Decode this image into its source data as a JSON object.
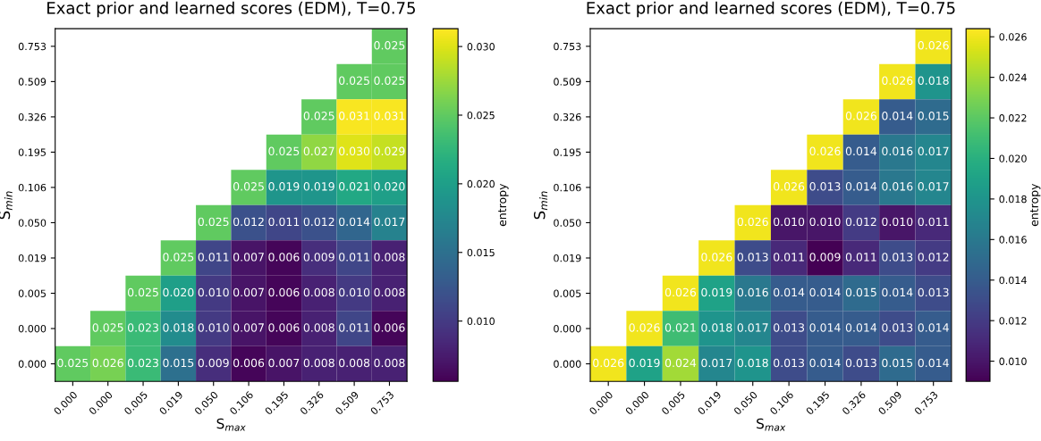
{
  "chart_data": [
    {
      "type": "heatmap",
      "title": "Exact prior and learned scores (EDM), T=0.75",
      "xlabel": "S$_{max}$",
      "ylabel": "S$_{min}$",
      "clabel": "entropy",
      "categories": [
        "0.000",
        "0.000",
        "0.005",
        "0.019",
        "0.050",
        "0.106",
        "0.195",
        "0.326",
        "0.509",
        "0.753"
      ],
      "y_categories": [
        "0.753",
        "0.509",
        "0.326",
        "0.195",
        "0.106",
        "0.050",
        "0.019",
        "0.005",
        "0.000",
        "0.000"
      ],
      "cells": [
        [
          null,
          null,
          null,
          null,
          null,
          null,
          null,
          null,
          null,
          0.025
        ],
        [
          null,
          null,
          null,
          null,
          null,
          null,
          null,
          null,
          0.025,
          0.025
        ],
        [
          null,
          null,
          null,
          null,
          null,
          null,
          null,
          0.025,
          0.031,
          0.031
        ],
        [
          null,
          null,
          null,
          null,
          null,
          null,
          0.025,
          0.027,
          0.03,
          0.029
        ],
        [
          null,
          null,
          null,
          null,
          null,
          0.025,
          0.019,
          0.019,
          0.021,
          0.02
        ],
        [
          null,
          null,
          null,
          null,
          0.025,
          0.012,
          0.011,
          0.012,
          0.014,
          0.017
        ],
        [
          null,
          null,
          null,
          0.025,
          0.011,
          0.007,
          0.006,
          0.009,
          0.011,
          0.008
        ],
        [
          null,
          null,
          0.025,
          0.02,
          0.01,
          0.007,
          0.006,
          0.008,
          0.01,
          0.008
        ],
        [
          null,
          0.025,
          0.023,
          0.018,
          0.01,
          0.007,
          0.006,
          0.008,
          0.011,
          0.006
        ],
        [
          0.025,
          0.026,
          0.023,
          0.015,
          0.009,
          0.006,
          0.007,
          0.008,
          0.008,
          0.008
        ]
      ],
      "cell_labels": [
        [
          null,
          null,
          null,
          null,
          null,
          null,
          null,
          null,
          null,
          "0.025"
        ],
        [
          null,
          null,
          null,
          null,
          null,
          null,
          null,
          null,
          "0.025",
          "0.025"
        ],
        [
          null,
          null,
          null,
          null,
          null,
          null,
          null,
          "0.025",
          "0.031",
          "0.031"
        ],
        [
          null,
          null,
          null,
          null,
          null,
          null,
          "0.025",
          "0.027",
          "0.030",
          "0.029"
        ],
        [
          null,
          null,
          null,
          null,
          null,
          "0.025",
          "0.019",
          "0.019",
          "0.021",
          "0.020"
        ],
        [
          null,
          null,
          null,
          null,
          "0.025",
          "0.012",
          "0.011",
          "0.012",
          "0.014",
          "0.017"
        ],
        [
          null,
          null,
          null,
          "0.025",
          "0.011",
          "0.007",
          "0.006",
          "0.009",
          "0.011",
          "0.008"
        ],
        [
          null,
          null,
          "0.025",
          "0.020",
          "0.010",
          "0.007",
          "0.006",
          "0.008",
          "0.010",
          "0.008"
        ],
        [
          null,
          "0.025",
          "0.023",
          "0.018",
          "0.010",
          "0.007",
          "0.006",
          "0.008",
          "0.011",
          "0.006"
        ],
        [
          "0.025",
          "0.026",
          "0.023",
          "0.015",
          "0.009",
          "0.006",
          "0.007",
          "0.008",
          "0.008",
          "0.008"
        ]
      ],
      "clim": [
        0.0056,
        0.0313
      ],
      "cticks": [
        {
          "value": 0.01,
          "label": "0.010"
        },
        {
          "value": 0.015,
          "label": "0.015"
        },
        {
          "value": 0.02,
          "label": "0.020"
        },
        {
          "value": 0.025,
          "label": "0.025"
        },
        {
          "value": 0.03,
          "label": "0.030"
        }
      ]
    },
    {
      "type": "heatmap",
      "title": "Exact prior and learned scores (EDM), T=0.75",
      "xlabel": "S$_{max}$",
      "ylabel": "S$_{min}$",
      "clabel": "entropy",
      "categories": [
        "0.000",
        "0.000",
        "0.005",
        "0.019",
        "0.050",
        "0.106",
        "0.195",
        "0.326",
        "0.509",
        "0.753"
      ],
      "y_categories": [
        "0.753",
        "0.509",
        "0.326",
        "0.195",
        "0.106",
        "0.050",
        "0.019",
        "0.005",
        "0.000",
        "0.000"
      ],
      "cells": [
        [
          null,
          null,
          null,
          null,
          null,
          null,
          null,
          null,
          null,
          0.026
        ],
        [
          null,
          null,
          null,
          null,
          null,
          null,
          null,
          null,
          0.026,
          0.018
        ],
        [
          null,
          null,
          null,
          null,
          null,
          null,
          null,
          0.026,
          0.014,
          0.015
        ],
        [
          null,
          null,
          null,
          null,
          null,
          null,
          0.026,
          0.014,
          0.016,
          0.017
        ],
        [
          null,
          null,
          null,
          null,
          null,
          0.026,
          0.013,
          0.014,
          0.016,
          0.017
        ],
        [
          null,
          null,
          null,
          null,
          0.026,
          0.01,
          0.01,
          0.012,
          0.01,
          0.011
        ],
        [
          null,
          null,
          null,
          0.026,
          0.013,
          0.011,
          0.009,
          0.011,
          0.013,
          0.012
        ],
        [
          null,
          null,
          0.026,
          0.019,
          0.016,
          0.014,
          0.014,
          0.015,
          0.014,
          0.013
        ],
        [
          null,
          0.026,
          0.021,
          0.018,
          0.017,
          0.013,
          0.014,
          0.014,
          0.013,
          0.014
        ],
        [
          0.026,
          0.019,
          0.024,
          0.017,
          0.018,
          0.013,
          0.014,
          0.013,
          0.015,
          0.014
        ]
      ],
      "cell_labels": [
        [
          null,
          null,
          null,
          null,
          null,
          null,
          null,
          null,
          null,
          "0.026"
        ],
        [
          null,
          null,
          null,
          null,
          null,
          null,
          null,
          null,
          "0.026",
          "0.018"
        ],
        [
          null,
          null,
          null,
          null,
          null,
          null,
          null,
          "0.026",
          "0.014",
          "0.015"
        ],
        [
          null,
          null,
          null,
          null,
          null,
          null,
          "0.026",
          "0.014",
          "0.016",
          "0.017"
        ],
        [
          null,
          null,
          null,
          null,
          null,
          "0.026",
          "0.013",
          "0.014",
          "0.016",
          "0.017"
        ],
        [
          null,
          null,
          null,
          null,
          "0.026",
          "0.010",
          "0.010",
          "0.012",
          "0.010",
          "0.011"
        ],
        [
          null,
          null,
          null,
          "0.026",
          "0.013",
          "0.011",
          "0.009",
          "0.011",
          "0.013",
          "0.012"
        ],
        [
          null,
          null,
          "0.026",
          "0.019",
          "0.016",
          "0.014",
          "0.014",
          "0.015",
          "0.014",
          "0.013"
        ],
        [
          null,
          "0.026",
          "0.021",
          "0.018",
          "0.017",
          "0.013",
          "0.014",
          "0.014",
          "0.013",
          "0.014"
        ],
        [
          "0.026",
          "0.019",
          "0.024",
          "0.017",
          "0.018",
          "0.013",
          "0.014",
          "0.013",
          "0.015",
          "0.014"
        ]
      ],
      "clim": [
        0.009,
        0.0264
      ],
      "cticks": [
        {
          "value": 0.01,
          "label": "0.010"
        },
        {
          "value": 0.012,
          "label": "0.012"
        },
        {
          "value": 0.014,
          "label": "0.014"
        },
        {
          "value": 0.016,
          "label": "0.016"
        },
        {
          "value": 0.018,
          "label": "0.018"
        },
        {
          "value": 0.02,
          "label": "0.020"
        },
        {
          "value": 0.022,
          "label": "0.022"
        },
        {
          "value": 0.024,
          "label": "0.024"
        },
        {
          "value": 0.026,
          "label": "0.026"
        }
      ]
    }
  ]
}
